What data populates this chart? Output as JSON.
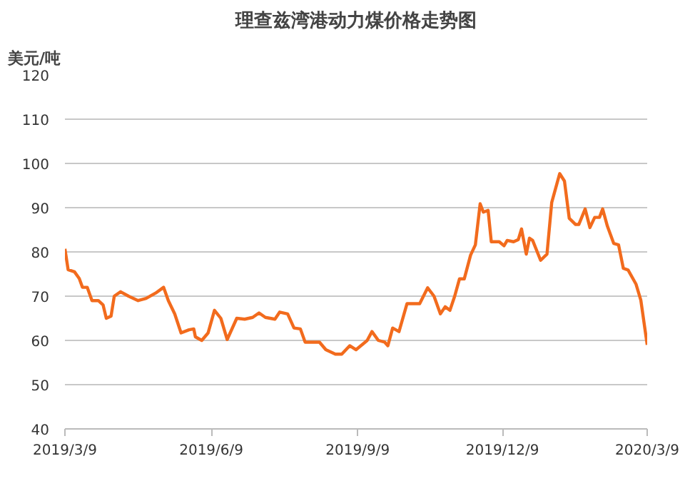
{
  "chart_data": {
    "type": "line",
    "title": "理查兹湾港动力煤价格走势图",
    "ylabel": "美元/吨",
    "x": [
      "2019-03-09",
      "2019-03-11",
      "2019-03-15",
      "2019-03-18",
      "2019-03-20",
      "2019-03-23",
      "2019-03-26",
      "2019-03-30",
      "2019-04-02",
      "2019-04-04",
      "2019-04-07",
      "2019-04-09",
      "2019-04-13",
      "2019-04-18",
      "2019-04-24",
      "2019-04-29",
      "2019-05-05",
      "2019-05-10",
      "2019-05-13",
      "2019-05-17",
      "2019-05-21",
      "2019-05-26",
      "2019-05-29",
      "2019-05-30",
      "2019-06-03",
      "2019-06-07",
      "2019-06-11",
      "2019-06-15",
      "2019-06-19",
      "2019-06-25",
      "2019-06-30",
      "2019-07-05",
      "2019-07-09",
      "2019-07-13",
      "2019-07-19",
      "2019-07-22",
      "2019-07-27",
      "2019-07-31",
      "2019-08-04",
      "2019-08-07",
      "2019-08-13",
      "2019-08-16",
      "2019-08-20",
      "2019-08-26",
      "2019-08-30",
      "2019-09-04",
      "2019-09-08",
      "2019-09-15",
      "2019-09-18",
      "2019-09-22",
      "2019-09-26",
      "2019-09-28",
      "2019-10-01",
      "2019-10-05",
      "2019-10-10",
      "2019-10-18",
      "2019-10-23",
      "2019-10-27",
      "2019-10-31",
      "2019-11-03",
      "2019-11-06",
      "2019-11-09",
      "2019-11-12",
      "2019-11-15",
      "2019-11-19",
      "2019-11-22",
      "2019-11-25",
      "2019-11-27",
      "2019-11-30",
      "2019-12-02",
      "2019-12-07",
      "2019-12-10",
      "2019-12-12",
      "2019-12-16",
      "2019-12-19",
      "2019-12-21",
      "2019-12-24",
      "2019-12-26",
      "2019-12-28",
      "2020-01-02",
      "2020-01-06",
      "2020-01-09",
      "2020-01-14",
      "2020-01-17",
      "2020-01-20",
      "2020-01-24",
      "2020-01-26",
      "2020-01-30",
      "2020-02-02",
      "2020-02-05",
      "2020-02-08",
      "2020-02-10",
      "2020-02-13",
      "2020-02-17",
      "2020-02-20",
      "2020-02-23",
      "2020-02-26",
      "2020-03-02",
      "2020-03-05",
      "2020-03-09"
    ],
    "series": [
      {
        "color": "#f26b1d",
        "values": [
          80.7,
          76,
          75.5,
          74,
          72,
          72,
          69,
          69,
          68,
          65,
          65.5,
          70,
          71,
          70,
          69,
          69.5,
          70.7,
          72,
          69,
          66,
          61.7,
          62.4,
          62.6,
          60.8,
          60,
          61.7,
          66.8,
          65,
          60.2,
          65,
          64.8,
          65.2,
          66.2,
          65.2,
          64.8,
          66.4,
          66,
          62.8,
          62.6,
          59.6,
          59.6,
          59.6,
          57.9,
          56.9,
          56.9,
          58.8,
          57.9,
          60,
          62,
          60,
          59.6,
          58.8,
          62.8,
          62,
          68.3,
          68.3,
          71.9,
          70,
          66,
          67.6,
          66.8,
          70,
          73.9,
          73.9,
          79.3,
          81.6,
          90.9,
          89,
          89.4,
          82.3,
          82.3,
          81.4,
          82.6,
          82.3,
          82.8,
          85.2,
          79.5,
          83.1,
          82.6,
          78.1,
          79.5,
          91.2,
          97.7,
          96,
          87.6,
          86.2,
          86.2,
          89.7,
          85.5,
          87.8,
          87.8,
          89.7,
          85.8,
          81.9,
          81.6,
          76.3,
          75.9,
          72.7,
          69.1,
          59
        ]
      }
    ],
    "xlim": [
      "2019-03-09",
      "2020-03-09"
    ],
    "xticks": [
      {
        "value": "2019-03-09",
        "label": "2019/3/9"
      },
      {
        "value": "2019-06-09",
        "label": "2019/6/9"
      },
      {
        "value": "2019-09-09",
        "label": "2019/9/9"
      },
      {
        "value": "2019-12-09",
        "label": "2019/12/9"
      },
      {
        "value": "2020-03-09",
        "label": "2020/3/9"
      }
    ],
    "ylim": [
      40,
      120
    ],
    "yticks": [
      40,
      50,
      60,
      70,
      80,
      90,
      100,
      110,
      120
    ],
    "grid": "y",
    "marker": "none",
    "line_style": "solid"
  }
}
